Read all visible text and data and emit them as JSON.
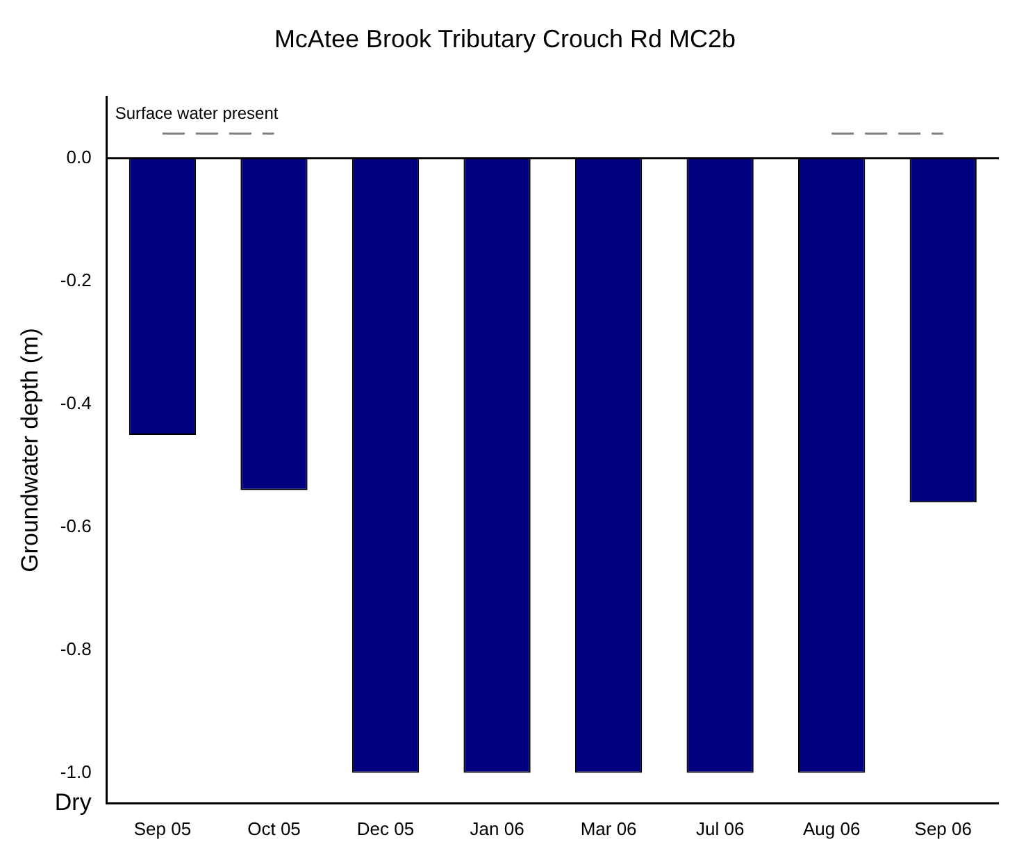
{
  "chart_data": {
    "type": "bar",
    "title": "McAtee Brook Tributary Crouch Rd MC2b",
    "ylabel": "Groundwater depth (m)",
    "categories": [
      "Sep 05",
      "Oct 05",
      "Dec 05",
      "Jan 06",
      "Mar 06",
      "Jul 06",
      "Aug 06",
      "Sep 06"
    ],
    "series": [
      {
        "color": "#000080",
        "values": [
          -0.45,
          -0.54,
          -1.0,
          -1.0,
          -1.0,
          -1.0,
          -1.0,
          -0.56
        ]
      },
      {
        "type": "line",
        "name": "Surface water present",
        "color": "#808080",
        "line_style": "dashed",
        "values": [
          0.04,
          0.04,
          null,
          null,
          null,
          null,
          0.04,
          0.04
        ]
      }
    ],
    "ylim": [
      -1.05,
      0.1
    ],
    "yticks": [
      {
        "value": 0,
        "label": "0.0"
      },
      {
        "value": -0.2,
        "label": "-0.2"
      },
      {
        "value": -0.4,
        "label": "-0.4"
      },
      {
        "value": -0.6,
        "label": "-0.6"
      },
      {
        "value": -0.8,
        "label": "-0.8"
      },
      {
        "value": -1.0,
        "label": "-1.0"
      },
      {
        "value": -1.05,
        "label": "Dry"
      }
    ],
    "ref_lines": [
      {
        "axis": "y",
        "value": 0,
        "color": "#000000"
      }
    ],
    "grid": false,
    "legend": false
  }
}
